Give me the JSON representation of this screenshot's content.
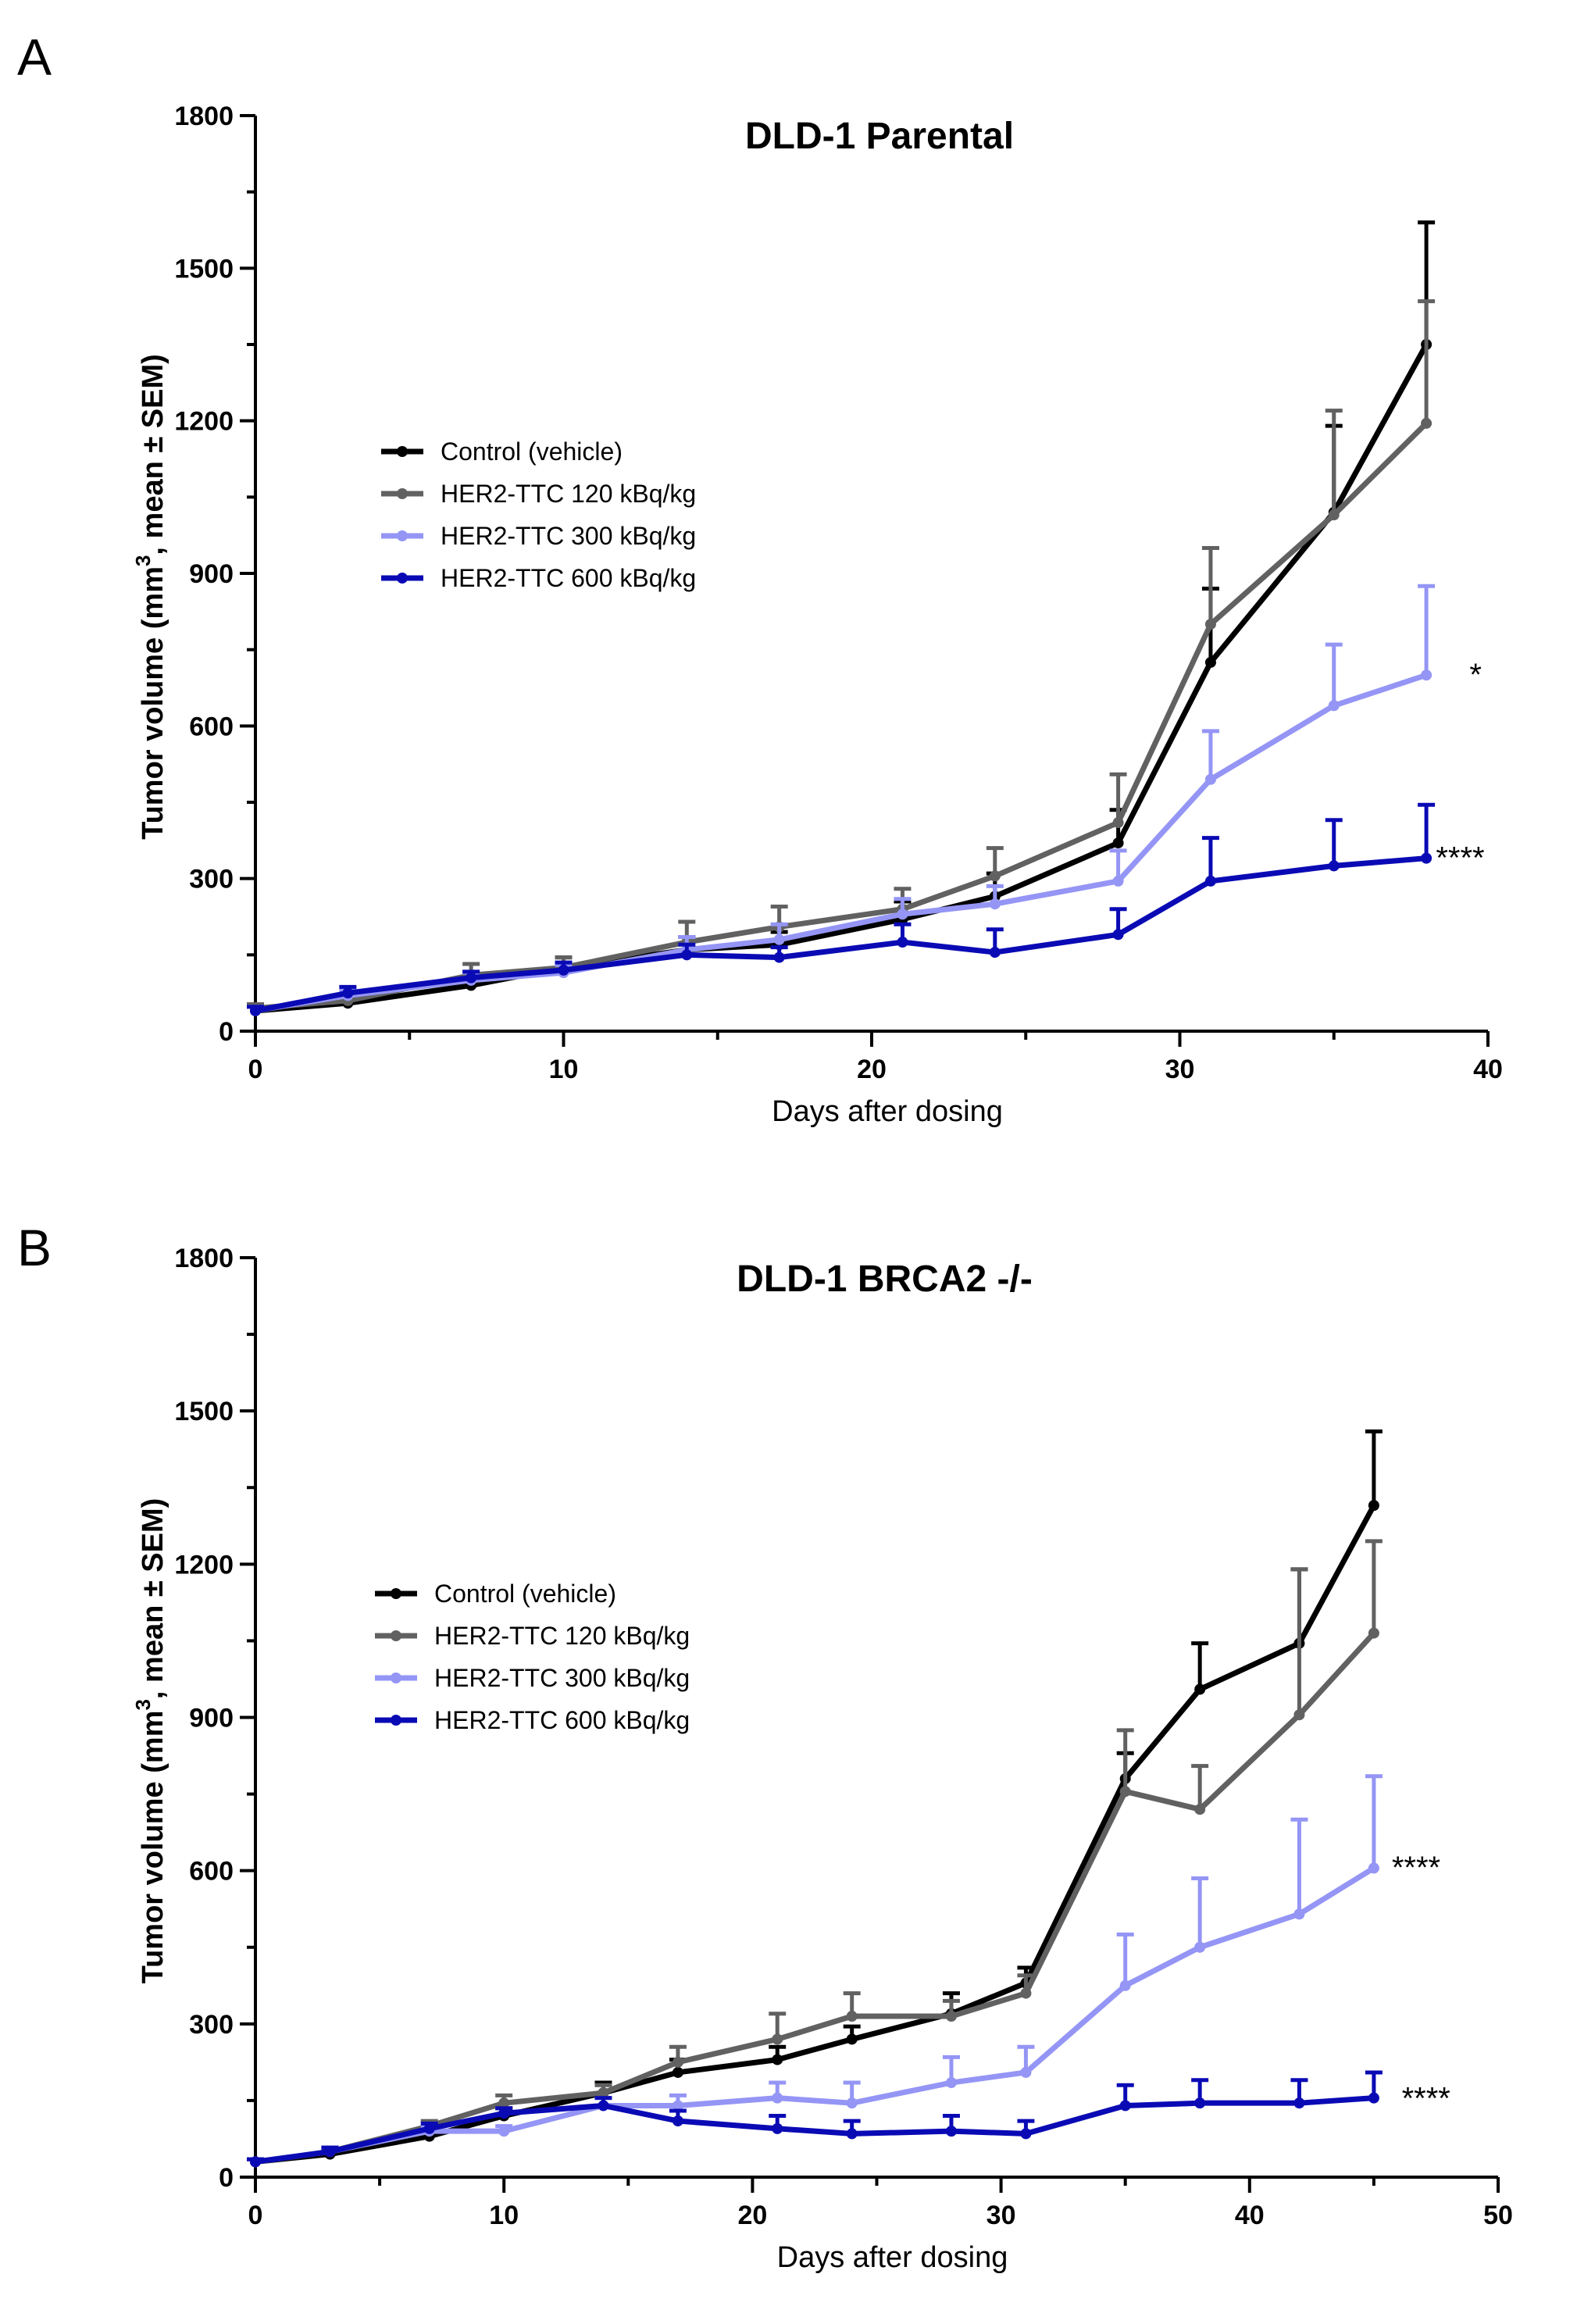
{
  "figure": {
    "panels": [
      "A",
      "B"
    ]
  },
  "chart_data": [
    {
      "type": "line",
      "panel": "A",
      "title": "DLD-1 Parental",
      "xlabel": "Days after dosing",
      "ylabel_pre": "Tumor volume (mm",
      "ylabel_sup": "3",
      "ylabel_post": ", mean ± SEM)",
      "xlim": [
        0,
        40
      ],
      "ylim": [
        0,
        1800
      ],
      "xticks": [
        0,
        10,
        20,
        30,
        40
      ],
      "yticks": [
        0,
        300,
        600,
        900,
        1200,
        1500,
        1800
      ],
      "grid": false,
      "legend_position": "upper-left",
      "series": [
        {
          "name": "Control (vehicle)",
          "color": "#000000",
          "x": [
            0,
            3,
            7,
            10,
            14,
            17,
            21,
            24,
            28,
            31,
            35,
            38
          ],
          "y": [
            40,
            55,
            90,
            125,
            160,
            170,
            220,
            265,
            370,
            725,
            1020,
            1350
          ],
          "err": [
            8,
            10,
            12,
            20,
            25,
            25,
            35,
            45,
            65,
            145,
            170,
            240
          ]
        },
        {
          "name": "HER2-TTC 120 kBq/kg",
          "color": "#616161",
          "x": [
            0,
            3,
            7,
            10,
            14,
            17,
            21,
            24,
            28,
            31,
            35,
            38
          ],
          "y": [
            45,
            60,
            110,
            125,
            175,
            205,
            240,
            305,
            410,
            800,
            1015,
            1195
          ],
          "err": [
            8,
            10,
            22,
            20,
            40,
            40,
            40,
            55,
            95,
            150,
            205,
            240
          ]
        },
        {
          "name": "HER2-TTC 300 kBq/kg",
          "color": "#9495f5",
          "x": [
            0,
            3,
            7,
            10,
            14,
            17,
            21,
            24,
            28,
            31,
            35,
            38
          ],
          "y": [
            40,
            70,
            100,
            115,
            160,
            180,
            230,
            250,
            295,
            495,
            640,
            700
          ],
          "err": [
            8,
            10,
            15,
            15,
            25,
            30,
            30,
            35,
            60,
            95,
            120,
            175
          ]
        },
        {
          "name": "HER2-TTC 600 kBq/kg",
          "color": "#0a0ab5",
          "x": [
            0,
            3,
            7,
            10,
            14,
            17,
            21,
            24,
            28,
            31,
            35,
            38
          ],
          "y": [
            40,
            75,
            105,
            120,
            150,
            145,
            175,
            155,
            190,
            295,
            325,
            340
          ],
          "err": [
            8,
            12,
            12,
            15,
            20,
            20,
            35,
            45,
            50,
            85,
            90,
            105
          ]
        }
      ],
      "annotations": [
        {
          "text": "*",
          "x": 39.6,
          "y": 705
        },
        {
          "text": "****",
          "x": 39.1,
          "y": 345
        }
      ]
    },
    {
      "type": "line",
      "panel": "B",
      "title": "DLD-1 BRCA2 -/-",
      "xlabel": "Days after dosing",
      "ylabel_pre": "Tumor volume (mm",
      "ylabel_sup": "3",
      "ylabel_post": ", mean ± SEM)",
      "xlim": [
        0,
        50
      ],
      "ylim": [
        0,
        1800
      ],
      "xticks": [
        0,
        10,
        20,
        30,
        40,
        50
      ],
      "yticks": [
        0,
        300,
        600,
        900,
        1200,
        1500,
        1800
      ],
      "grid": false,
      "legend_position": "upper-left",
      "series": [
        {
          "name": "Control (vehicle)",
          "color": "#000000",
          "x": [
            0,
            3,
            7,
            10,
            14,
            17,
            21,
            24,
            28,
            31,
            35,
            38,
            42,
            45
          ],
          "y": [
            30,
            45,
            80,
            120,
            165,
            205,
            230,
            270,
            320,
            380,
            780,
            955,
            1045,
            1315
          ],
          "err": [
            5,
            8,
            10,
            15,
            20,
            25,
            25,
            25,
            40,
            30,
            50,
            90,
            145,
            145
          ]
        },
        {
          "name": "HER2-TTC 120 kBq/kg",
          "color": "#616161",
          "x": [
            0,
            3,
            7,
            10,
            14,
            17,
            21,
            24,
            28,
            31,
            35,
            38,
            42,
            45
          ],
          "y": [
            30,
            50,
            100,
            145,
            165,
            225,
            270,
            315,
            315,
            360,
            755,
            720,
            905,
            1065
          ],
          "err": [
            5,
            8,
            10,
            15,
            15,
            30,
            50,
            45,
            30,
            35,
            120,
            85,
            285,
            180
          ]
        },
        {
          "name": "HER2-TTC 300 kBq/kg",
          "color": "#9495f5",
          "x": [
            0,
            3,
            7,
            10,
            14,
            17,
            21,
            24,
            28,
            31,
            35,
            38,
            42,
            45
          ],
          "y": [
            30,
            50,
            90,
            90,
            140,
            140,
            155,
            145,
            185,
            205,
            375,
            450,
            515,
            605
          ],
          "err": [
            5,
            8,
            10,
            10,
            15,
            20,
            30,
            40,
            50,
            50,
            100,
            135,
            185,
            180
          ]
        },
        {
          "name": "HER2-TTC 600 kBq/kg",
          "color": "#0a0ab5",
          "x": [
            0,
            3,
            7,
            10,
            14,
            17,
            21,
            24,
            28,
            31,
            35,
            38,
            42,
            45
          ],
          "y": [
            30,
            50,
            95,
            125,
            140,
            110,
            95,
            85,
            90,
            85,
            140,
            145,
            145,
            155
          ],
          "err": [
            5,
            8,
            10,
            10,
            15,
            20,
            25,
            25,
            30,
            25,
            40,
            45,
            45,
            50
          ]
        }
      ],
      "annotations": [
        {
          "text": "****",
          "x": 46.7,
          "y": 610
        },
        {
          "text": "****",
          "x": 47.1,
          "y": 158
        }
      ]
    }
  ]
}
